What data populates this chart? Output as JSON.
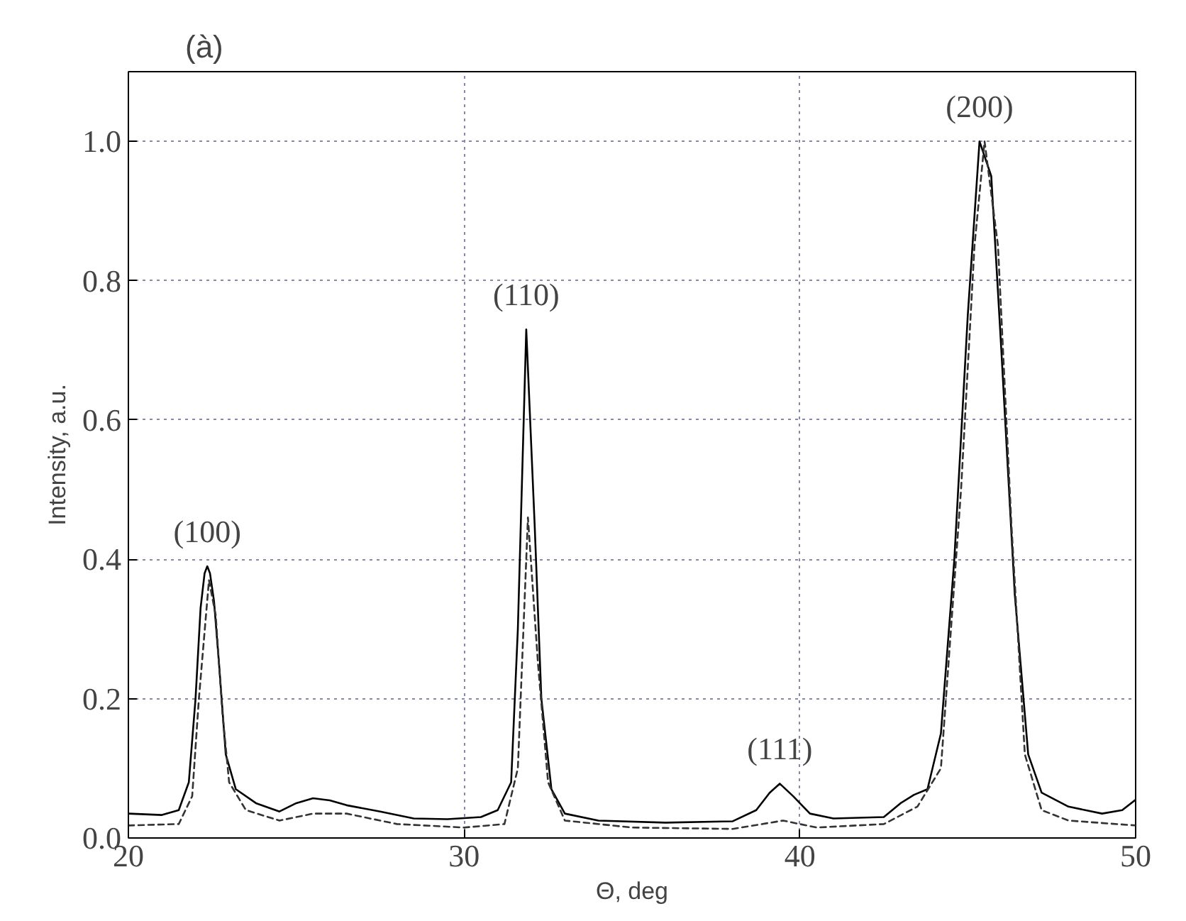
{
  "chart_data": {
    "type": "line",
    "title": "(à)",
    "xlabel": "Θ, deg",
    "ylabel": "Intensity, a.u.",
    "xlim": [
      20,
      50
    ],
    "xticks": [
      20,
      30,
      40,
      50
    ],
    "ylim": [
      0,
      1.1
    ],
    "yticks": [
      {
        "value": 0,
        "label": "0.0"
      },
      0.2,
      0.4,
      0.6,
      0.8,
      {
        "value": 1,
        "label": "1.0"
      }
    ],
    "grid": true,
    "marker": "none",
    "series": [
      {
        "color": "#000000",
        "line_style": "solid",
        "x": [
          20,
          21,
          21.5,
          21.8,
          22.0,
          22.15,
          22.27,
          22.35,
          22.43,
          22.55,
          22.7,
          22.9,
          23.2,
          23.8,
          24.5,
          25.0,
          25.5,
          26.0,
          26.5,
          27.5,
          28.5,
          29.5,
          30.5,
          31.0,
          31.4,
          31.6,
          31.85,
          32.1,
          32.3,
          32.6,
          33.0,
          34,
          36,
          38,
          38.7,
          39.1,
          39.4,
          39.8,
          40.3,
          41,
          42.5,
          43.0,
          43.4,
          43.8,
          44.2,
          44.6,
          45.0,
          45.35,
          45.7,
          46.0,
          46.4,
          46.8,
          47.2,
          48,
          49,
          49.6,
          50
        ],
        "values": [
          0.035,
          0.033,
          0.04,
          0.08,
          0.2,
          0.33,
          0.38,
          0.39,
          0.38,
          0.34,
          0.25,
          0.12,
          0.07,
          0.05,
          0.038,
          0.05,
          0.057,
          0.054,
          0.047,
          0.038,
          0.028,
          0.027,
          0.03,
          0.04,
          0.08,
          0.3,
          0.73,
          0.45,
          0.2,
          0.07,
          0.035,
          0.025,
          0.022,
          0.024,
          0.04,
          0.065,
          0.078,
          0.06,
          0.035,
          0.028,
          0.03,
          0.05,
          0.062,
          0.07,
          0.15,
          0.4,
          0.75,
          1.0,
          0.95,
          0.7,
          0.35,
          0.12,
          0.065,
          0.045,
          0.035,
          0.04,
          0.055
        ]
      },
      {
        "color": "#333333",
        "line_style": "dashed",
        "x": [
          20,
          21.5,
          21.9,
          22.1,
          22.4,
          22.6,
          22.8,
          23.0,
          23.5,
          24.5,
          25.5,
          26.5,
          28,
          30,
          31.2,
          31.6,
          31.9,
          32.2,
          32.5,
          33,
          35,
          38,
          39.5,
          40.5,
          42.5,
          43.5,
          44.2,
          44.8,
          45.2,
          45.5,
          45.9,
          46.3,
          46.7,
          47.2,
          48,
          50
        ],
        "values": [
          0.018,
          0.02,
          0.06,
          0.2,
          0.37,
          0.32,
          0.18,
          0.08,
          0.04,
          0.025,
          0.035,
          0.035,
          0.02,
          0.015,
          0.02,
          0.1,
          0.46,
          0.25,
          0.08,
          0.025,
          0.015,
          0.013,
          0.025,
          0.015,
          0.02,
          0.045,
          0.1,
          0.5,
          0.85,
          1.0,
          0.85,
          0.45,
          0.12,
          0.04,
          0.025,
          0.018
        ]
      }
    ],
    "annotations": [
      {
        "text": "(100)",
        "x": 22.35,
        "y": 0.39
      },
      {
        "text": "(110)",
        "x": 31.85,
        "y": 0.73
      },
      {
        "text": "(111)",
        "x": 39.4,
        "y": 0.078
      },
      {
        "text": "(200)",
        "x": 45.35,
        "y": 1.0
      }
    ]
  }
}
